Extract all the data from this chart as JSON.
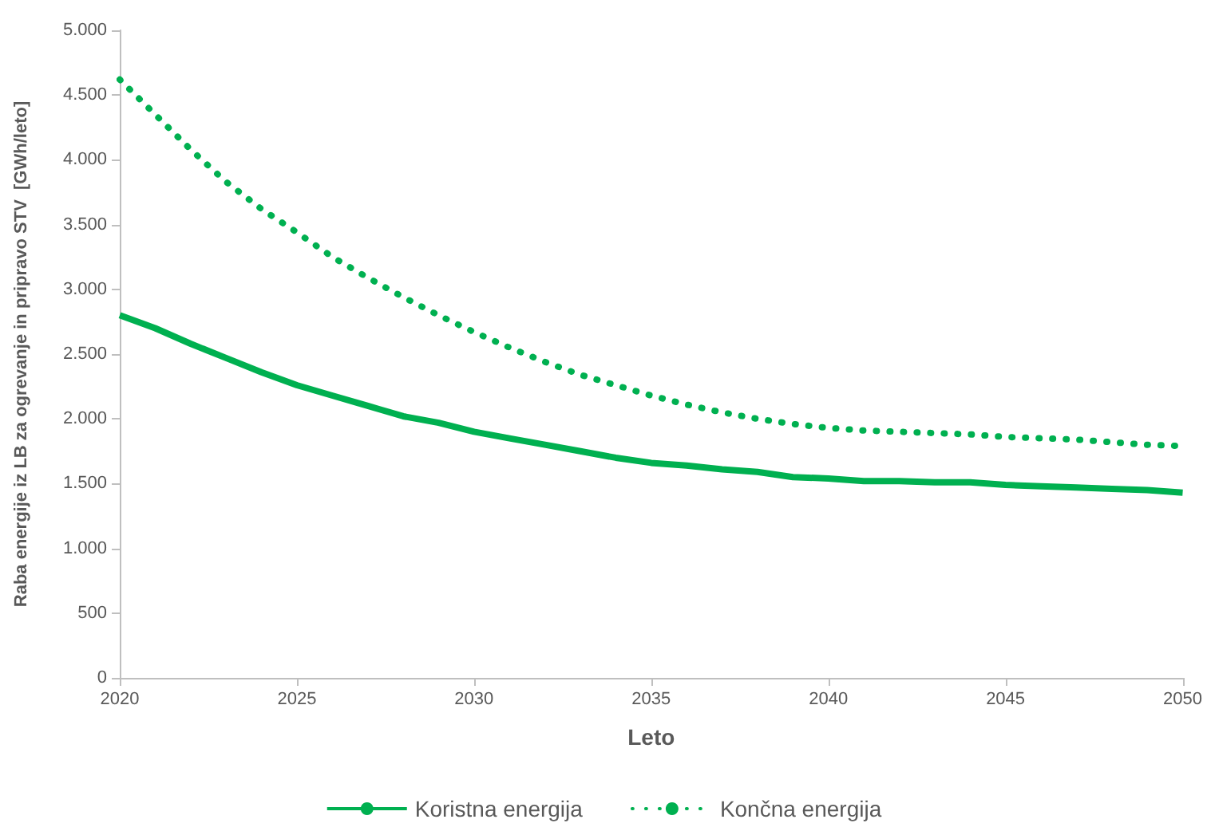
{
  "chart_data": {
    "type": "line",
    "xlabel": "Leto",
    "ylabel": "Raba energije iz LB za ogrevanje in pripravo STV  [GWh/leto]",
    "x": [
      2020,
      2021,
      2022,
      2023,
      2024,
      2025,
      2026,
      2027,
      2028,
      2029,
      2030,
      2031,
      2032,
      2033,
      2034,
      2035,
      2036,
      2037,
      2038,
      2039,
      2040,
      2041,
      2042,
      2043,
      2044,
      2045,
      2046,
      2047,
      2048,
      2049,
      2050
    ],
    "series": [
      {
        "name": "Koristna energija",
        "color": "#00b050",
        "line_style": "solid",
        "values": [
          2800,
          2700,
          2580,
          2470,
          2360,
          2260,
          2180,
          2100,
          2020,
          1970,
          1900,
          1850,
          1800,
          1750,
          1700,
          1660,
          1640,
          1610,
          1590,
          1550,
          1540,
          1520,
          1520,
          1510,
          1510,
          1490,
          1480,
          1470,
          1460,
          1450,
          1430
        ]
      },
      {
        "name": "Končna energija",
        "color": "#00b050",
        "line_style": "dotted",
        "values": [
          4620,
          4350,
          4080,
          3830,
          3620,
          3440,
          3250,
          3090,
          2940,
          2800,
          2670,
          2550,
          2440,
          2340,
          2260,
          2180,
          2110,
          2050,
          2000,
          1960,
          1930,
          1910,
          1900,
          1890,
          1880,
          1860,
          1850,
          1840,
          1820,
          1800,
          1790
        ]
      }
    ],
    "xlim": [
      2020,
      2050
    ],
    "xticks": [
      2020,
      2025,
      2030,
      2035,
      2040,
      2045,
      2050
    ],
    "ylim": [
      0,
      5000
    ],
    "yticks": [
      0,
      500,
      {
        "value": 1000,
        "label": "1.000"
      },
      {
        "value": 1500,
        "label": "1.500"
      },
      {
        "value": 2000,
        "label": "2.000"
      },
      {
        "value": 2500,
        "label": "2.500"
      },
      {
        "value": 3000,
        "label": "3.000"
      },
      {
        "value": 3500,
        "label": "3.500"
      },
      {
        "value": 4000,
        "label": "4.000"
      },
      {
        "value": 4500,
        "label": "4.500"
      },
      {
        "value": 5000,
        "label": "5.000"
      }
    ],
    "grid": false,
    "legend": "bottom",
    "marker": "none"
  }
}
